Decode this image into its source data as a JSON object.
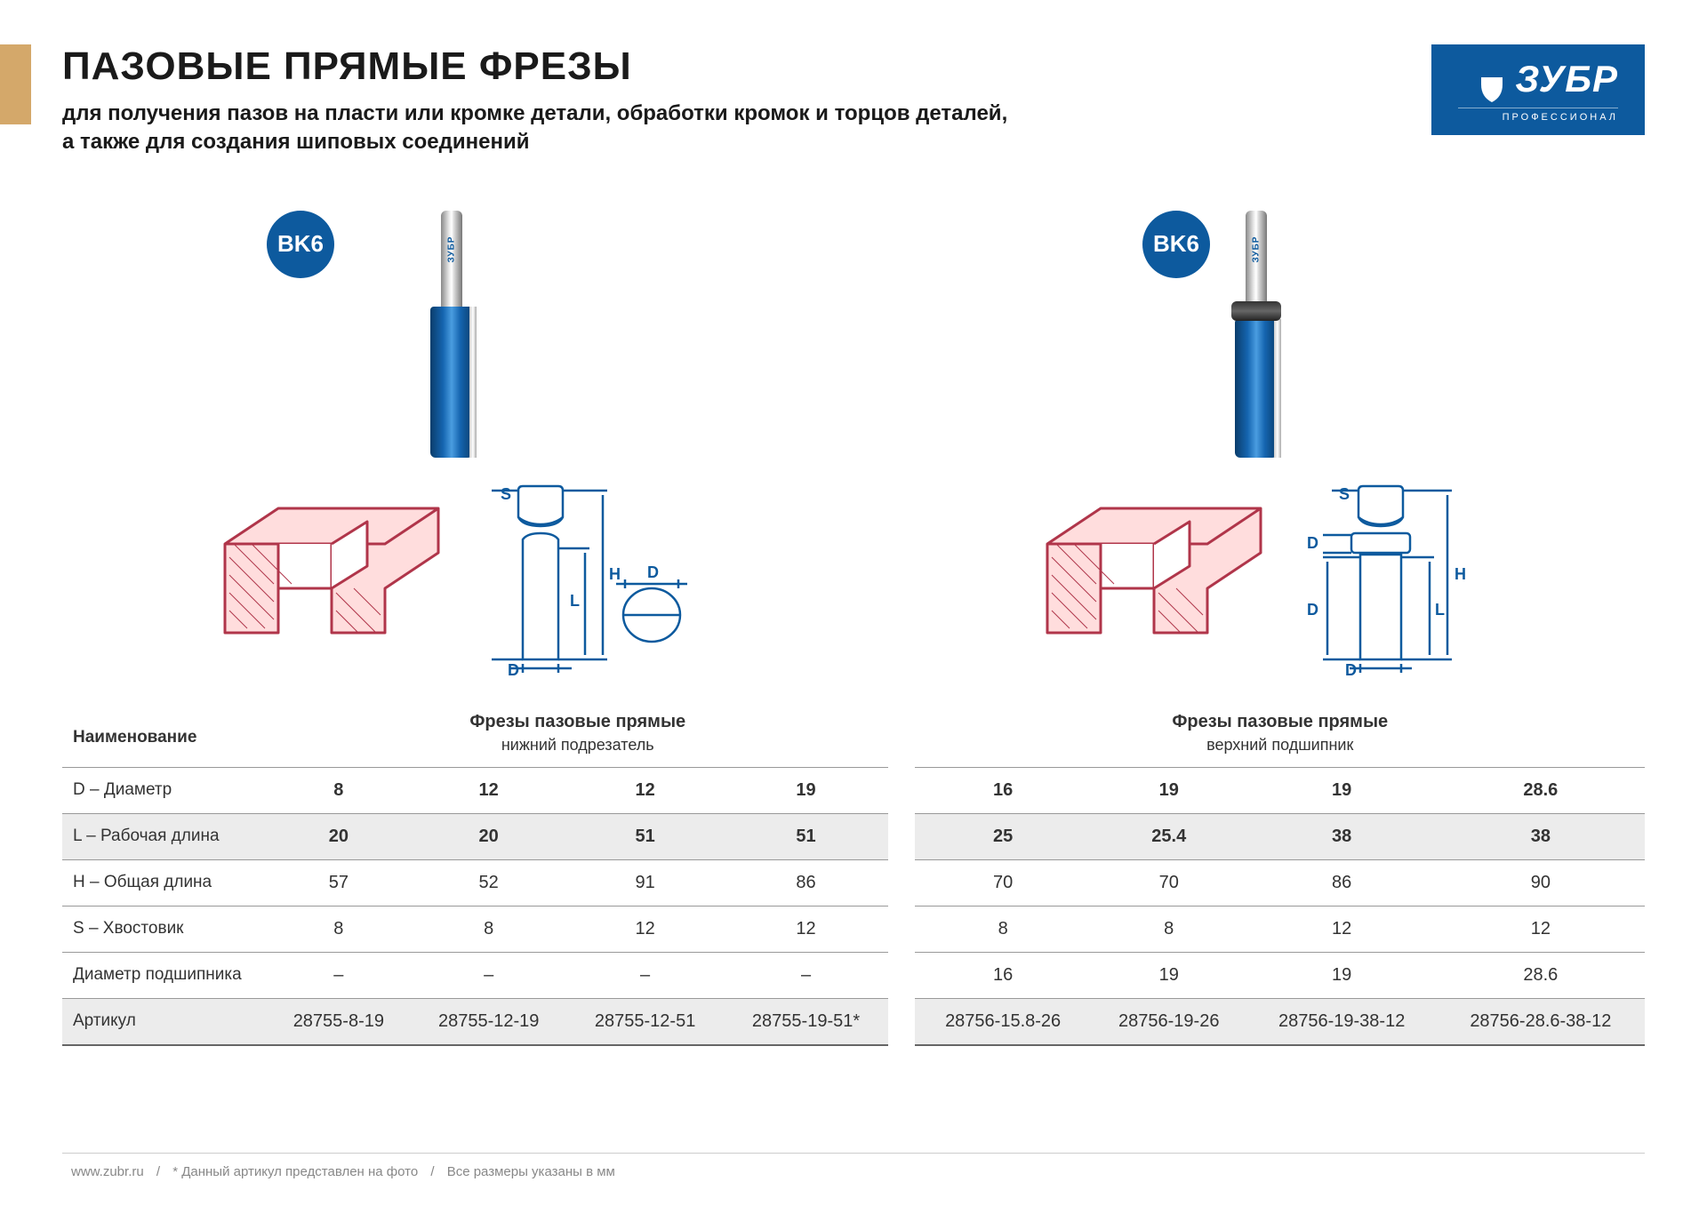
{
  "colors": {
    "brand": "#0d5a9e",
    "accent_stripe": "#d4a86a",
    "text": "#1a1a1a",
    "table_shade": "#ececec",
    "diagram_stroke": "#b0354a",
    "diagram_blue": "#0d5a9e"
  },
  "logo": {
    "brand": "ЗУБР",
    "sub": "ПРОФЕССИОНАЛ"
  },
  "header": {
    "title": "ПАЗОВЫЕ ПРЯМЫЕ ФРЕЗЫ",
    "subtitle_line1": "для получения пазов на пласти или кромке детали, обработки кромок и торцов деталей,",
    "subtitle_line2": "а также для создания шиповых соединений"
  },
  "badge": "BK6",
  "products": {
    "left": {
      "title": "Фрезы пазовые прямые",
      "subtitle": "нижний подрезатель",
      "diagram_labels": {
        "S": "S",
        "H": "H",
        "L": "L",
        "D": "D"
      }
    },
    "right": {
      "title": "Фрезы пазовые прямые",
      "subtitle": "верхний подшипник",
      "diagram_labels": {
        "S": "S",
        "H": "H",
        "L": "L",
        "D": "D"
      }
    }
  },
  "table": {
    "row_labels": {
      "name": "Наименование",
      "d": "D – Диаметр",
      "l": "L – Рабочая длина",
      "h": "H – Общая длина",
      "s": "S – Хвостовик",
      "bearing": "Диаметр подшипника",
      "article": "Артикул"
    },
    "left": {
      "d": [
        "8",
        "12",
        "12",
        "19"
      ],
      "l": [
        "20",
        "20",
        "51",
        "51"
      ],
      "h": [
        "57",
        "52",
        "91",
        "86"
      ],
      "s": [
        "8",
        "8",
        "12",
        "12"
      ],
      "bearing": [
        "–",
        "–",
        "–",
        "–"
      ],
      "article": [
        "28755-8-19",
        "28755-12-19",
        "28755-12-51",
        "28755-19-51*"
      ]
    },
    "right": {
      "d": [
        "16",
        "19",
        "19",
        "28.6"
      ],
      "l": [
        "25",
        "25.4",
        "38",
        "38"
      ],
      "h": [
        "70",
        "70",
        "86",
        "90"
      ],
      "s": [
        "8",
        "8",
        "12",
        "12"
      ],
      "bearing": [
        "16",
        "19",
        "19",
        "28.6"
      ],
      "article": [
        "28756-15.8-26",
        "28756-19-26",
        "28756-19-38-12",
        "28756-28.6-38-12"
      ]
    }
  },
  "footer": {
    "url": "www.zubr.ru",
    "note1": "* Данный артикул представлен на фото",
    "note2": "Все размеры указаны в мм"
  }
}
